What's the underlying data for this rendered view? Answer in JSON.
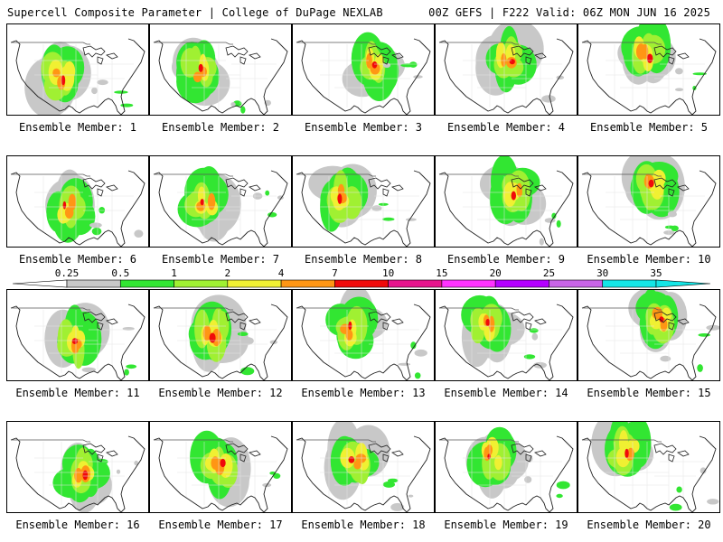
{
  "header": {
    "title": "Supercell Composite Parameter | College of DuPage NEXLAB",
    "run_info": "00Z GEFS | F222 Valid: 06Z MON JUN 16 2025"
  },
  "panels": [
    {
      "label": "Ensemble Member: 1"
    },
    {
      "label": "Ensemble Member: 2"
    },
    {
      "label": "Ensemble Member: 3"
    },
    {
      "label": "Ensemble Member: 4"
    },
    {
      "label": "Ensemble Member: 5"
    },
    {
      "label": "Ensemble Member: 6"
    },
    {
      "label": "Ensemble Member: 7"
    },
    {
      "label": "Ensemble Member: 8"
    },
    {
      "label": "Ensemble Member: 9"
    },
    {
      "label": "Ensemble Member: 10"
    },
    {
      "label": "Ensemble Member: 11"
    },
    {
      "label": "Ensemble Member: 12"
    },
    {
      "label": "Ensemble Member: 13"
    },
    {
      "label": "Ensemble Member: 14"
    },
    {
      "label": "Ensemble Member: 15"
    },
    {
      "label": "Ensemble Member: 16"
    },
    {
      "label": "Ensemble Member: 17"
    },
    {
      "label": "Ensemble Member: 18"
    },
    {
      "label": "Ensemble Member: 19"
    },
    {
      "label": "Ensemble Member: 20"
    }
  ],
  "legend": {
    "thresholds": [
      "0.25",
      "0.5",
      "1",
      "2",
      "4",
      "7",
      "10",
      "15",
      "20",
      "25",
      "30",
      "35"
    ],
    "colors": [
      "#c8c8c8",
      "#32e632",
      "#a0f032",
      "#f0f032",
      "#ff9614",
      "#f00a0a",
      "#e6148c",
      "#ff32ff",
      "#b400ff",
      "#c864e6",
      "#14e6e6"
    ]
  },
  "map_style": {
    "outline_color": "#222222",
    "border_color": "#555555",
    "background": "#ffffff"
  }
}
